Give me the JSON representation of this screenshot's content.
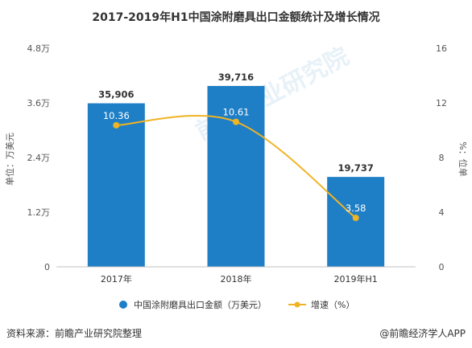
{
  "chart_data": {
    "type": "bar",
    "title": "2017-2019年H1中国涂附磨具出口金额统计及增长情况",
    "categories": [
      "2017年",
      "2018年",
      "2019年H1"
    ],
    "series": [
      {
        "name": "中国涂附磨具出口金额（万美元）",
        "type": "bar",
        "axis": "left",
        "values": [
          35906,
          39716,
          19737
        ],
        "labels": [
          "35,906",
          "39,716",
          "19,737"
        ]
      },
      {
        "name": "增速（%）",
        "type": "line",
        "axis": "right",
        "values": [
          10.36,
          10.61,
          3.58
        ],
        "labels": [
          "10.36",
          "10.61",
          "3.58"
        ]
      }
    ],
    "y_left": {
      "label": "单位：万美元",
      "range": [
        0,
        48000
      ],
      "ticks": [
        0,
        12000,
        24000,
        36000,
        48000
      ],
      "tick_labels": [
        "0",
        "1.2万",
        "2.4万",
        "3.6万",
        "4.8万"
      ]
    },
    "y_right": {
      "label": "%：位单",
      "range": [
        0,
        16
      ],
      "ticks": [
        0,
        4,
        8,
        12,
        16
      ],
      "tick_labels": [
        "0",
        "4",
        "8",
        "12",
        "16"
      ]
    },
    "legend_position": "bottom",
    "grid": false,
    "colors": {
      "bar": "#1E7FC6",
      "line": "#F0B323",
      "axis": "#BFBFBF",
      "text": "#333333"
    }
  },
  "watermark": "前瞻产业研究院",
  "footer": {
    "source": "资料来源：前瞻产业研究院整理",
    "brand": "@前瞻经济学人APP"
  }
}
